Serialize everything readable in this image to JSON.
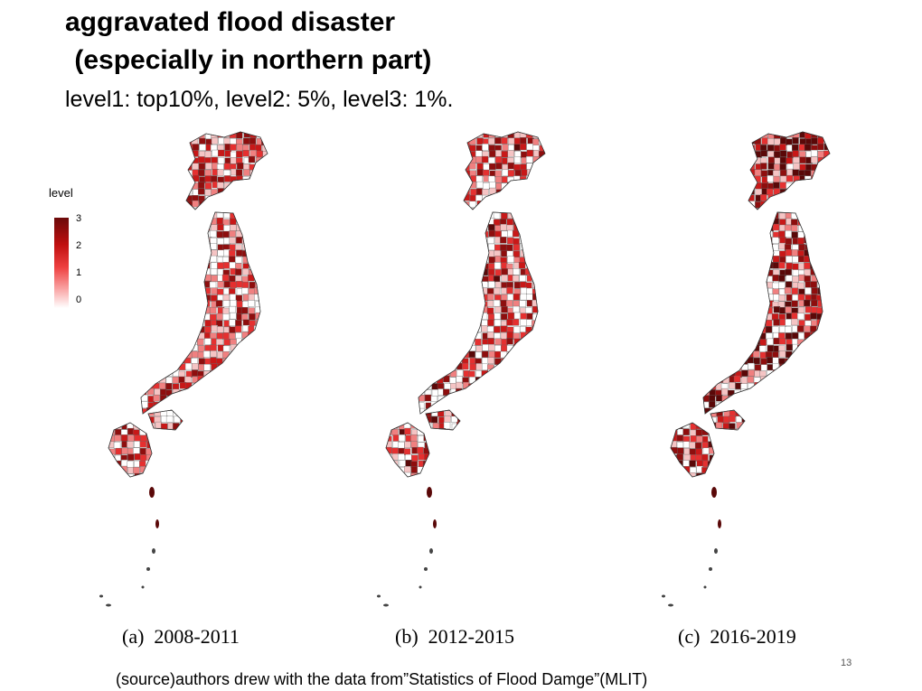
{
  "title_line1": "aggravated flood disaster",
  "title_line2": " (especially in northern part)",
  "subtitle": "level1: top10%, level2: 5%, level3: 1%.",
  "legend": {
    "title": "level",
    "ticks": [
      "3",
      "2",
      "1",
      "0"
    ],
    "colors": {
      "high": "#6b0a0a",
      "mid": "#e53030",
      "low": "#ffffff"
    }
  },
  "panels": [
    {
      "caption": "(a)  2008-2011",
      "intensity": 0.55
    },
    {
      "caption": "(b)  2012-2015",
      "intensity": 0.6
    },
    {
      "caption": "(c)  2016-2019",
      "intensity": 0.85
    }
  ],
  "source": "(source)authors drew with the data from”Statistics of Flood Damge”(MLIT)",
  "page_number": "13"
}
